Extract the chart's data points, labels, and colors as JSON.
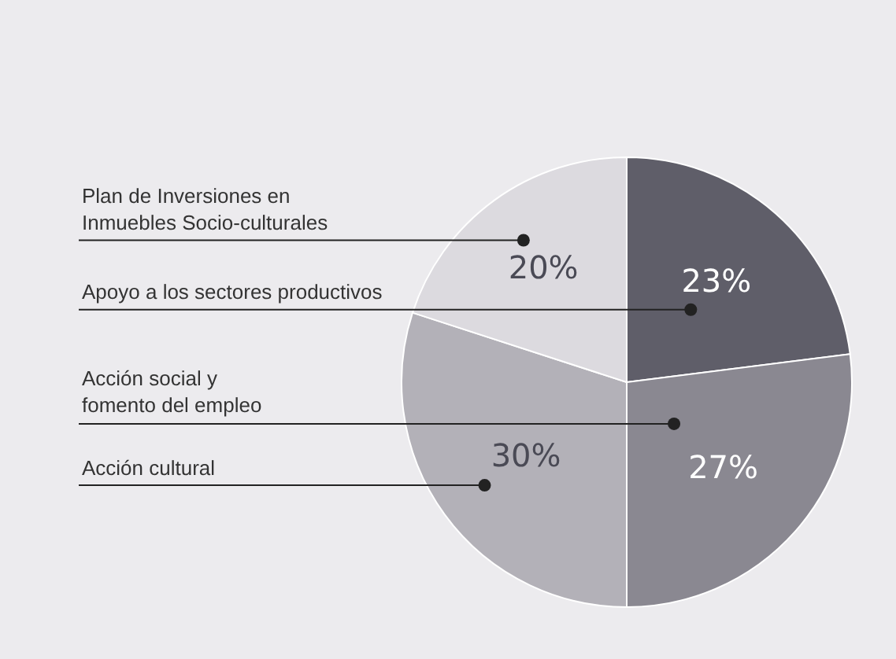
{
  "chart_data": {
    "type": "pie",
    "categories": [
      "Apoyo a los sectores productivos",
      "Acción social y\nfomento del empleo",
      "Acción cultural",
      "Plan de Inversiones en\nInmuebles Socio-culturales"
    ],
    "values": [
      23,
      27,
      30,
      20
    ],
    "value_labels": [
      "23%",
      "27%",
      "30%",
      "20%"
    ],
    "colors": [
      "#5f5e69",
      "#8a8891",
      "#b3b1b8",
      "#dcdadf"
    ],
    "legend": false
  }
}
